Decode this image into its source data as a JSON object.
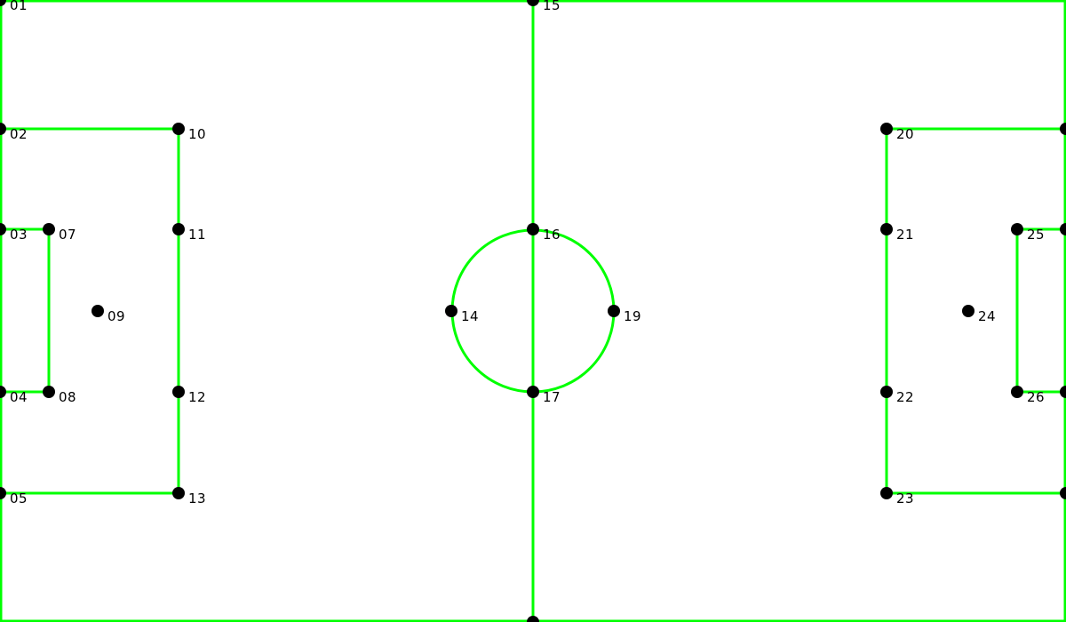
{
  "colors": {
    "background": "#ffffff",
    "line": "#00ff00",
    "keypoint": "#000000",
    "label": "#000000"
  },
  "keypoints": [
    {
      "id": "01",
      "label": "01"
    },
    {
      "id": "02",
      "label": "02"
    },
    {
      "id": "03",
      "label": "03"
    },
    {
      "id": "04",
      "label": "04"
    },
    {
      "id": "05",
      "label": "05"
    },
    {
      "id": "07",
      "label": "07"
    },
    {
      "id": "08",
      "label": "08"
    },
    {
      "id": "09",
      "label": "09"
    },
    {
      "id": "10",
      "label": "10"
    },
    {
      "id": "11",
      "label": "11"
    },
    {
      "id": "12",
      "label": "12"
    },
    {
      "id": "13",
      "label": "13"
    },
    {
      "id": "14",
      "label": "14"
    },
    {
      "id": "15",
      "label": "15"
    },
    {
      "id": "16",
      "label": "16"
    },
    {
      "id": "17",
      "label": "17"
    },
    {
      "id": "19",
      "label": "19"
    },
    {
      "id": "20",
      "label": "20"
    },
    {
      "id": "21",
      "label": "21"
    },
    {
      "id": "22",
      "label": "22"
    },
    {
      "id": "23",
      "label": "23"
    },
    {
      "id": "24",
      "label": "24"
    },
    {
      "id": "25",
      "label": "25"
    },
    {
      "id": "26",
      "label": "26"
    }
  ]
}
